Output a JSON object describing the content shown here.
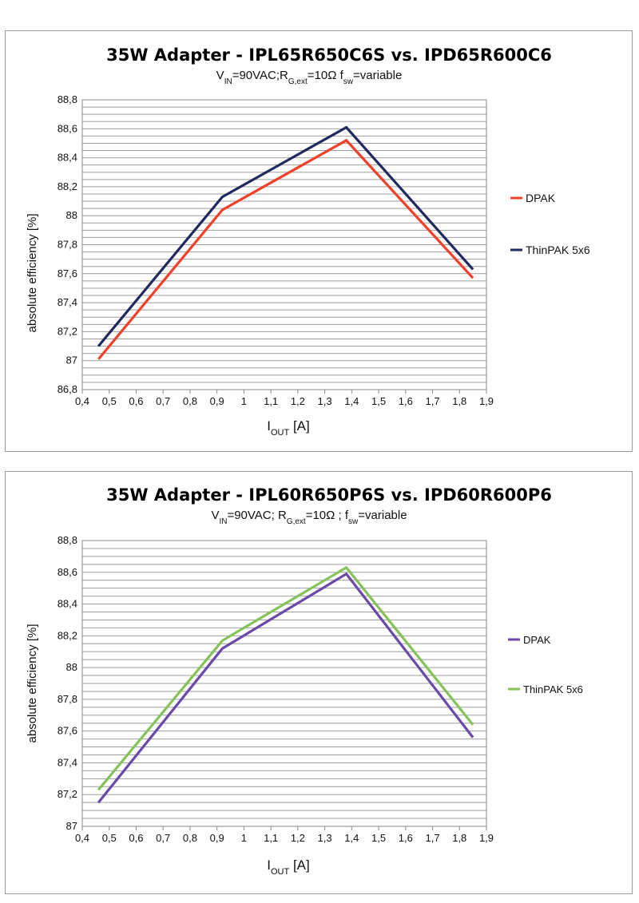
{
  "chart_data": [
    {
      "type": "line",
      "title": "35W Adapter - IPL65R650C6S vs. IPD65R600C6",
      "subtitle": {
        "p1": "V",
        "s1": "IN",
        "p2": "=90VAC;R",
        "s2": "G,ext",
        "p3": "=10Ω f",
        "s3": "sw",
        "p4": "=variable"
      },
      "xlabel": {
        "main": "I",
        "sub": "OUT",
        "rest": " [A]"
      },
      "ylabel": "absolute efficiency [%]",
      "xlim": [
        0.4,
        1.9
      ],
      "ylim": [
        86.8,
        88.8
      ],
      "x_ticks": [
        "0,4",
        "0,5",
        "0,6",
        "0,7",
        "0,8",
        "0,9",
        "1",
        "1,1",
        "1,2",
        "1,3",
        "1,4",
        "1,5",
        "1,6",
        "1,7",
        "1,8",
        "1,9"
      ],
      "y_ticks": [
        "86,8",
        "87",
        "87,2",
        "87,4",
        "87,6",
        "87,8",
        "88",
        "88,2",
        "88,4",
        "88,6",
        "88,8"
      ],
      "grid": true,
      "legend_position": "right",
      "series": [
        {
          "name": "DPAK",
          "color": "#f0402a",
          "x": [
            0.46,
            0.92,
            1.38,
            1.85
          ],
          "y": [
            87.01,
            88.04,
            88.52,
            87.57
          ]
        },
        {
          "name": "ThinPAK 5x6",
          "color": "#1f2a5e",
          "x": [
            0.46,
            0.92,
            1.38,
            1.85
          ],
          "y": [
            87.1,
            88.13,
            88.61,
            87.63
          ]
        }
      ]
    },
    {
      "type": "line",
      "title": "35W Adapter - IPL60R650P6S vs. IPD60R600P6",
      "subtitle": {
        "p1": "V",
        "s1": "IN",
        "p2": "=90VAC; R",
        "s2": "G,ext",
        "p3": "=10Ω ; f",
        "s3": "sw",
        "p4": "=variable"
      },
      "xlabel": {
        "main": "I",
        "sub": "OUT",
        "rest": " [A]"
      },
      "ylabel": "absolute efficiency [%]",
      "xlim": [
        0.4,
        1.9
      ],
      "ylim": [
        87.0,
        88.8
      ],
      "x_ticks": [
        "0,4",
        "0,5",
        "0,6",
        "0,7",
        "0,8",
        "0,9",
        "1",
        "1,1",
        "1,2",
        "1,3",
        "1,4",
        "1,5",
        "1,6",
        "1,7",
        "1,8",
        "1,9"
      ],
      "y_ticks": [
        "87",
        "87,2",
        "87,4",
        "87,6",
        "87,8",
        "88",
        "88,2",
        "88,4",
        "88,6",
        "88,8"
      ],
      "grid": true,
      "legend_position": "right",
      "series": [
        {
          "name": "DPAK",
          "color": "#6a49a8",
          "x": [
            0.46,
            0.92,
            1.38,
            1.85
          ],
          "y": [
            87.15,
            88.12,
            88.59,
            87.56
          ]
        },
        {
          "name": "ThinPAK 5x6",
          "color": "#86c25a",
          "x": [
            0.46,
            0.92,
            1.38,
            1.85
          ],
          "y": [
            87.23,
            88.17,
            88.63,
            87.64
          ]
        }
      ]
    }
  ]
}
